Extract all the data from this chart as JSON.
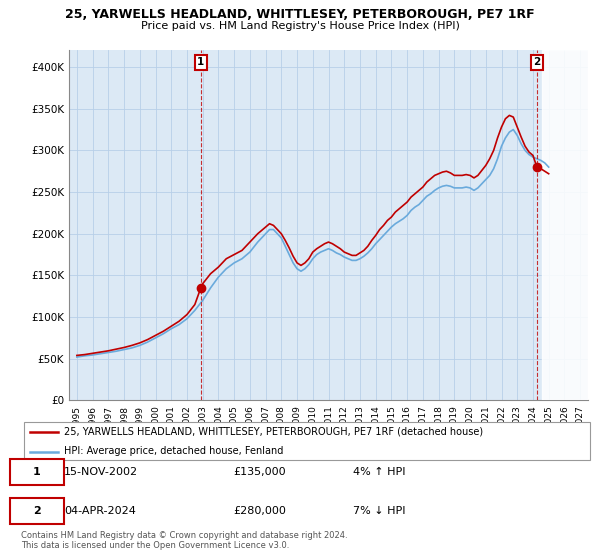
{
  "title": "25, YARWELLS HEADLAND, WHITTLESEY, PETERBOROUGH, PE7 1RF",
  "subtitle": "Price paid vs. HM Land Registry's House Price Index (HPI)",
  "legend_line1": "25, YARWELLS HEADLAND, WHITTLESEY, PETERBOROUGH, PE7 1RF (detached house)",
  "legend_line2": "HPI: Average price, detached house, Fenland",
  "annotation1_date": "15-NOV-2002",
  "annotation1_price": "£135,000",
  "annotation1_hpi": "4% ↑ HPI",
  "annotation2_date": "04-APR-2024",
  "annotation2_price": "£280,000",
  "annotation2_hpi": "7% ↓ HPI",
  "footer": "Contains HM Land Registry data © Crown copyright and database right 2024.\nThis data is licensed under the Open Government Licence v3.0.",
  "hpi_color": "#6aaadc",
  "price_color": "#c00000",
  "bg_color": "#dce9f5",
  "grid_color": "#b8cfe8",
  "ylim": [
    0,
    420000
  ],
  "yticks": [
    0,
    50000,
    100000,
    150000,
    200000,
    250000,
    300000,
    350000,
    400000
  ],
  "ytick_labels": [
    "£0",
    "£50K",
    "£100K",
    "£150K",
    "£200K",
    "£250K",
    "£300K",
    "£350K",
    "£400K"
  ],
  "sale1_x": 2002.88,
  "sale1_y": 135000,
  "sale2_x": 2024.25,
  "sale2_y": 280000,
  "xlim_start": 1994.5,
  "xlim_end": 2027.5,
  "hatch_start": 2024.58,
  "xtick_years": [
    1995,
    1996,
    1997,
    1998,
    1999,
    2000,
    2001,
    2002,
    2003,
    2004,
    2005,
    2006,
    2007,
    2008,
    2009,
    2010,
    2011,
    2012,
    2013,
    2014,
    2015,
    2016,
    2017,
    2018,
    2019,
    2020,
    2021,
    2022,
    2023,
    2024,
    2025,
    2026,
    2027
  ]
}
